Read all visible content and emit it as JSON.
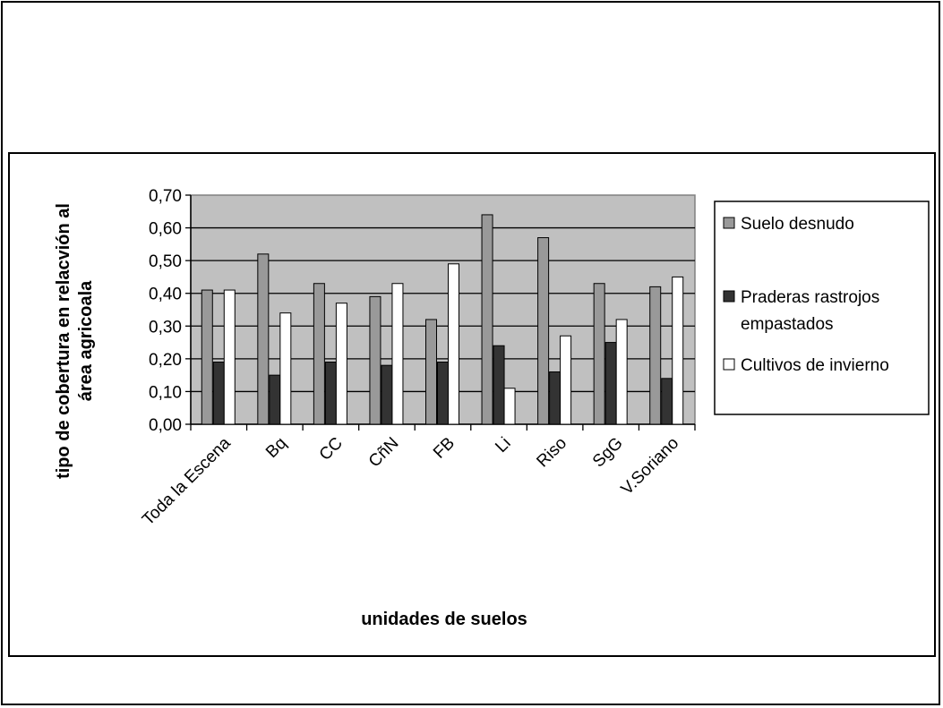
{
  "chart_data": {
    "type": "bar",
    "title": "",
    "xlabel": "unidades de suelos",
    "ylabel_lines": [
      "tipo de cobertura en relacvión al",
      "área agricoala"
    ],
    "categories": [
      "Toda la Escena",
      "Bq",
      "CC",
      "CñN",
      "FB",
      "Li",
      "Riso",
      "SgG",
      "V.Soriano"
    ],
    "series": [
      {
        "name": "Suelo desnudo",
        "color": "#999999",
        "values": [
          0.41,
          0.52,
          0.43,
          0.39,
          0.32,
          0.64,
          0.57,
          0.43,
          0.42
        ]
      },
      {
        "name_lines": [
          "Praderas rastrojos",
          "empastados"
        ],
        "color": "#333333",
        "values": [
          0.19,
          0.15,
          0.19,
          0.18,
          0.19,
          0.24,
          0.16,
          0.25,
          0.14
        ]
      },
      {
        "name": "Cultivos de invierno",
        "color": "#ffffff",
        "values": [
          0.41,
          0.34,
          0.37,
          0.43,
          0.49,
          0.11,
          0.27,
          0.32,
          0.45
        ]
      }
    ],
    "ylim": [
      0,
      0.7
    ],
    "yticks": [
      "0,00",
      "0,10",
      "0,20",
      "0,30",
      "0,40",
      "0,50",
      "0,60",
      "0,70"
    ],
    "plot_background": "#c0c0c0",
    "grid": true,
    "legend_position": "right"
  }
}
